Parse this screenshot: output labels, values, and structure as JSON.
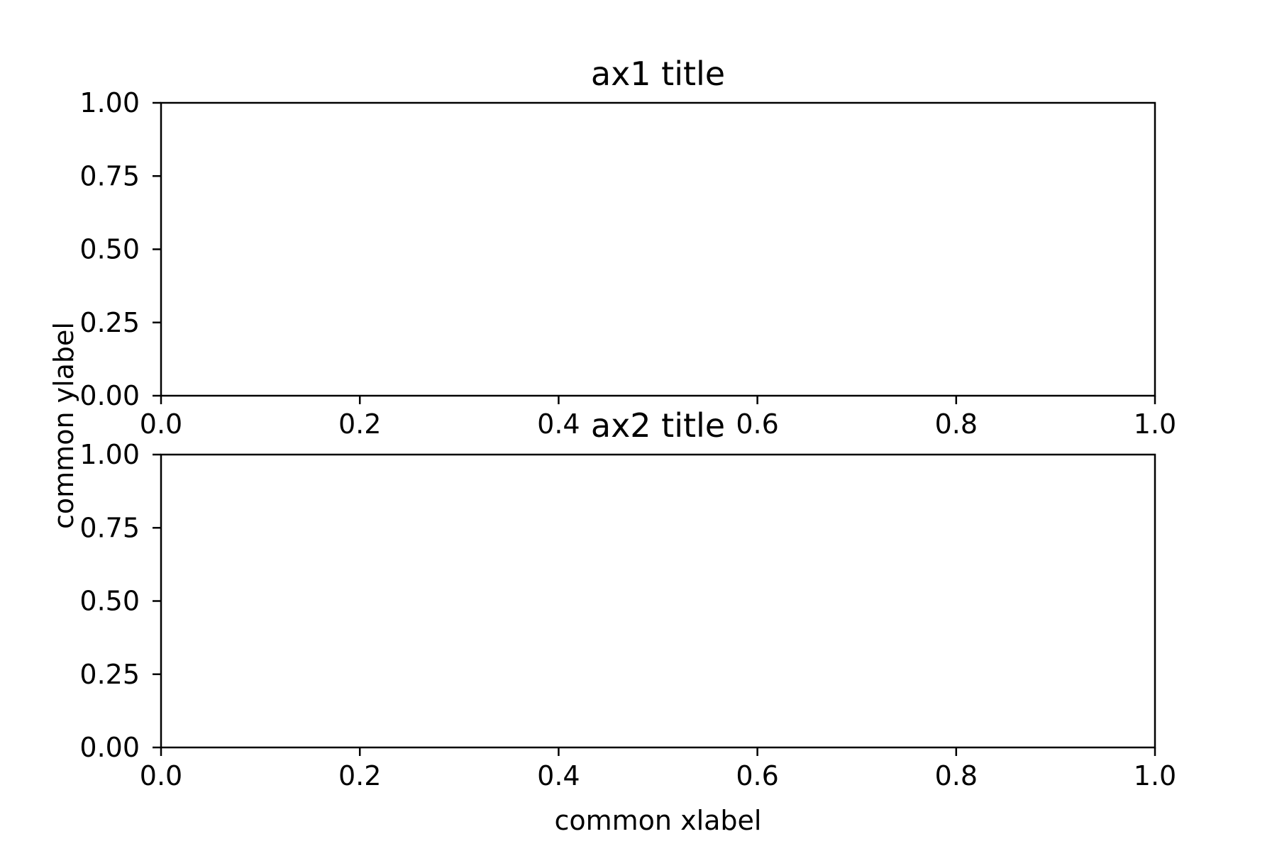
{
  "chart_data": [
    {
      "type": "line",
      "title": "ax1 title",
      "series": [],
      "xlim": [
        0.0,
        1.0
      ],
      "ylim": [
        0.0,
        1.0
      ],
      "xticks": [
        0.0,
        0.2,
        0.4,
        0.6,
        0.8,
        1.0
      ],
      "xtick_labels": [
        "0.0",
        "0.2",
        "0.4",
        "0.6",
        "0.8",
        "1.0"
      ],
      "yticks": [
        0.0,
        0.25,
        0.5,
        0.75,
        1.0
      ],
      "ytick_labels": [
        "0.00",
        "0.25",
        "0.50",
        "0.75",
        "1.00"
      ],
      "grid": false
    },
    {
      "type": "line",
      "title": "ax2 title",
      "series": [],
      "xlim": [
        0.0,
        1.0
      ],
      "ylim": [
        0.0,
        1.0
      ],
      "xticks": [
        0.0,
        0.2,
        0.4,
        0.6,
        0.8,
        1.0
      ],
      "xtick_labels": [
        "0.0",
        "0.2",
        "0.4",
        "0.6",
        "0.8",
        "1.0"
      ],
      "yticks": [
        0.0,
        0.25,
        0.5,
        0.75,
        1.0
      ],
      "ytick_labels": [
        "0.00",
        "0.25",
        "0.50",
        "0.75",
        "1.00"
      ],
      "grid": false
    }
  ],
  "figure": {
    "common_xlabel": "common xlabel",
    "common_ylabel": "common ylabel"
  }
}
